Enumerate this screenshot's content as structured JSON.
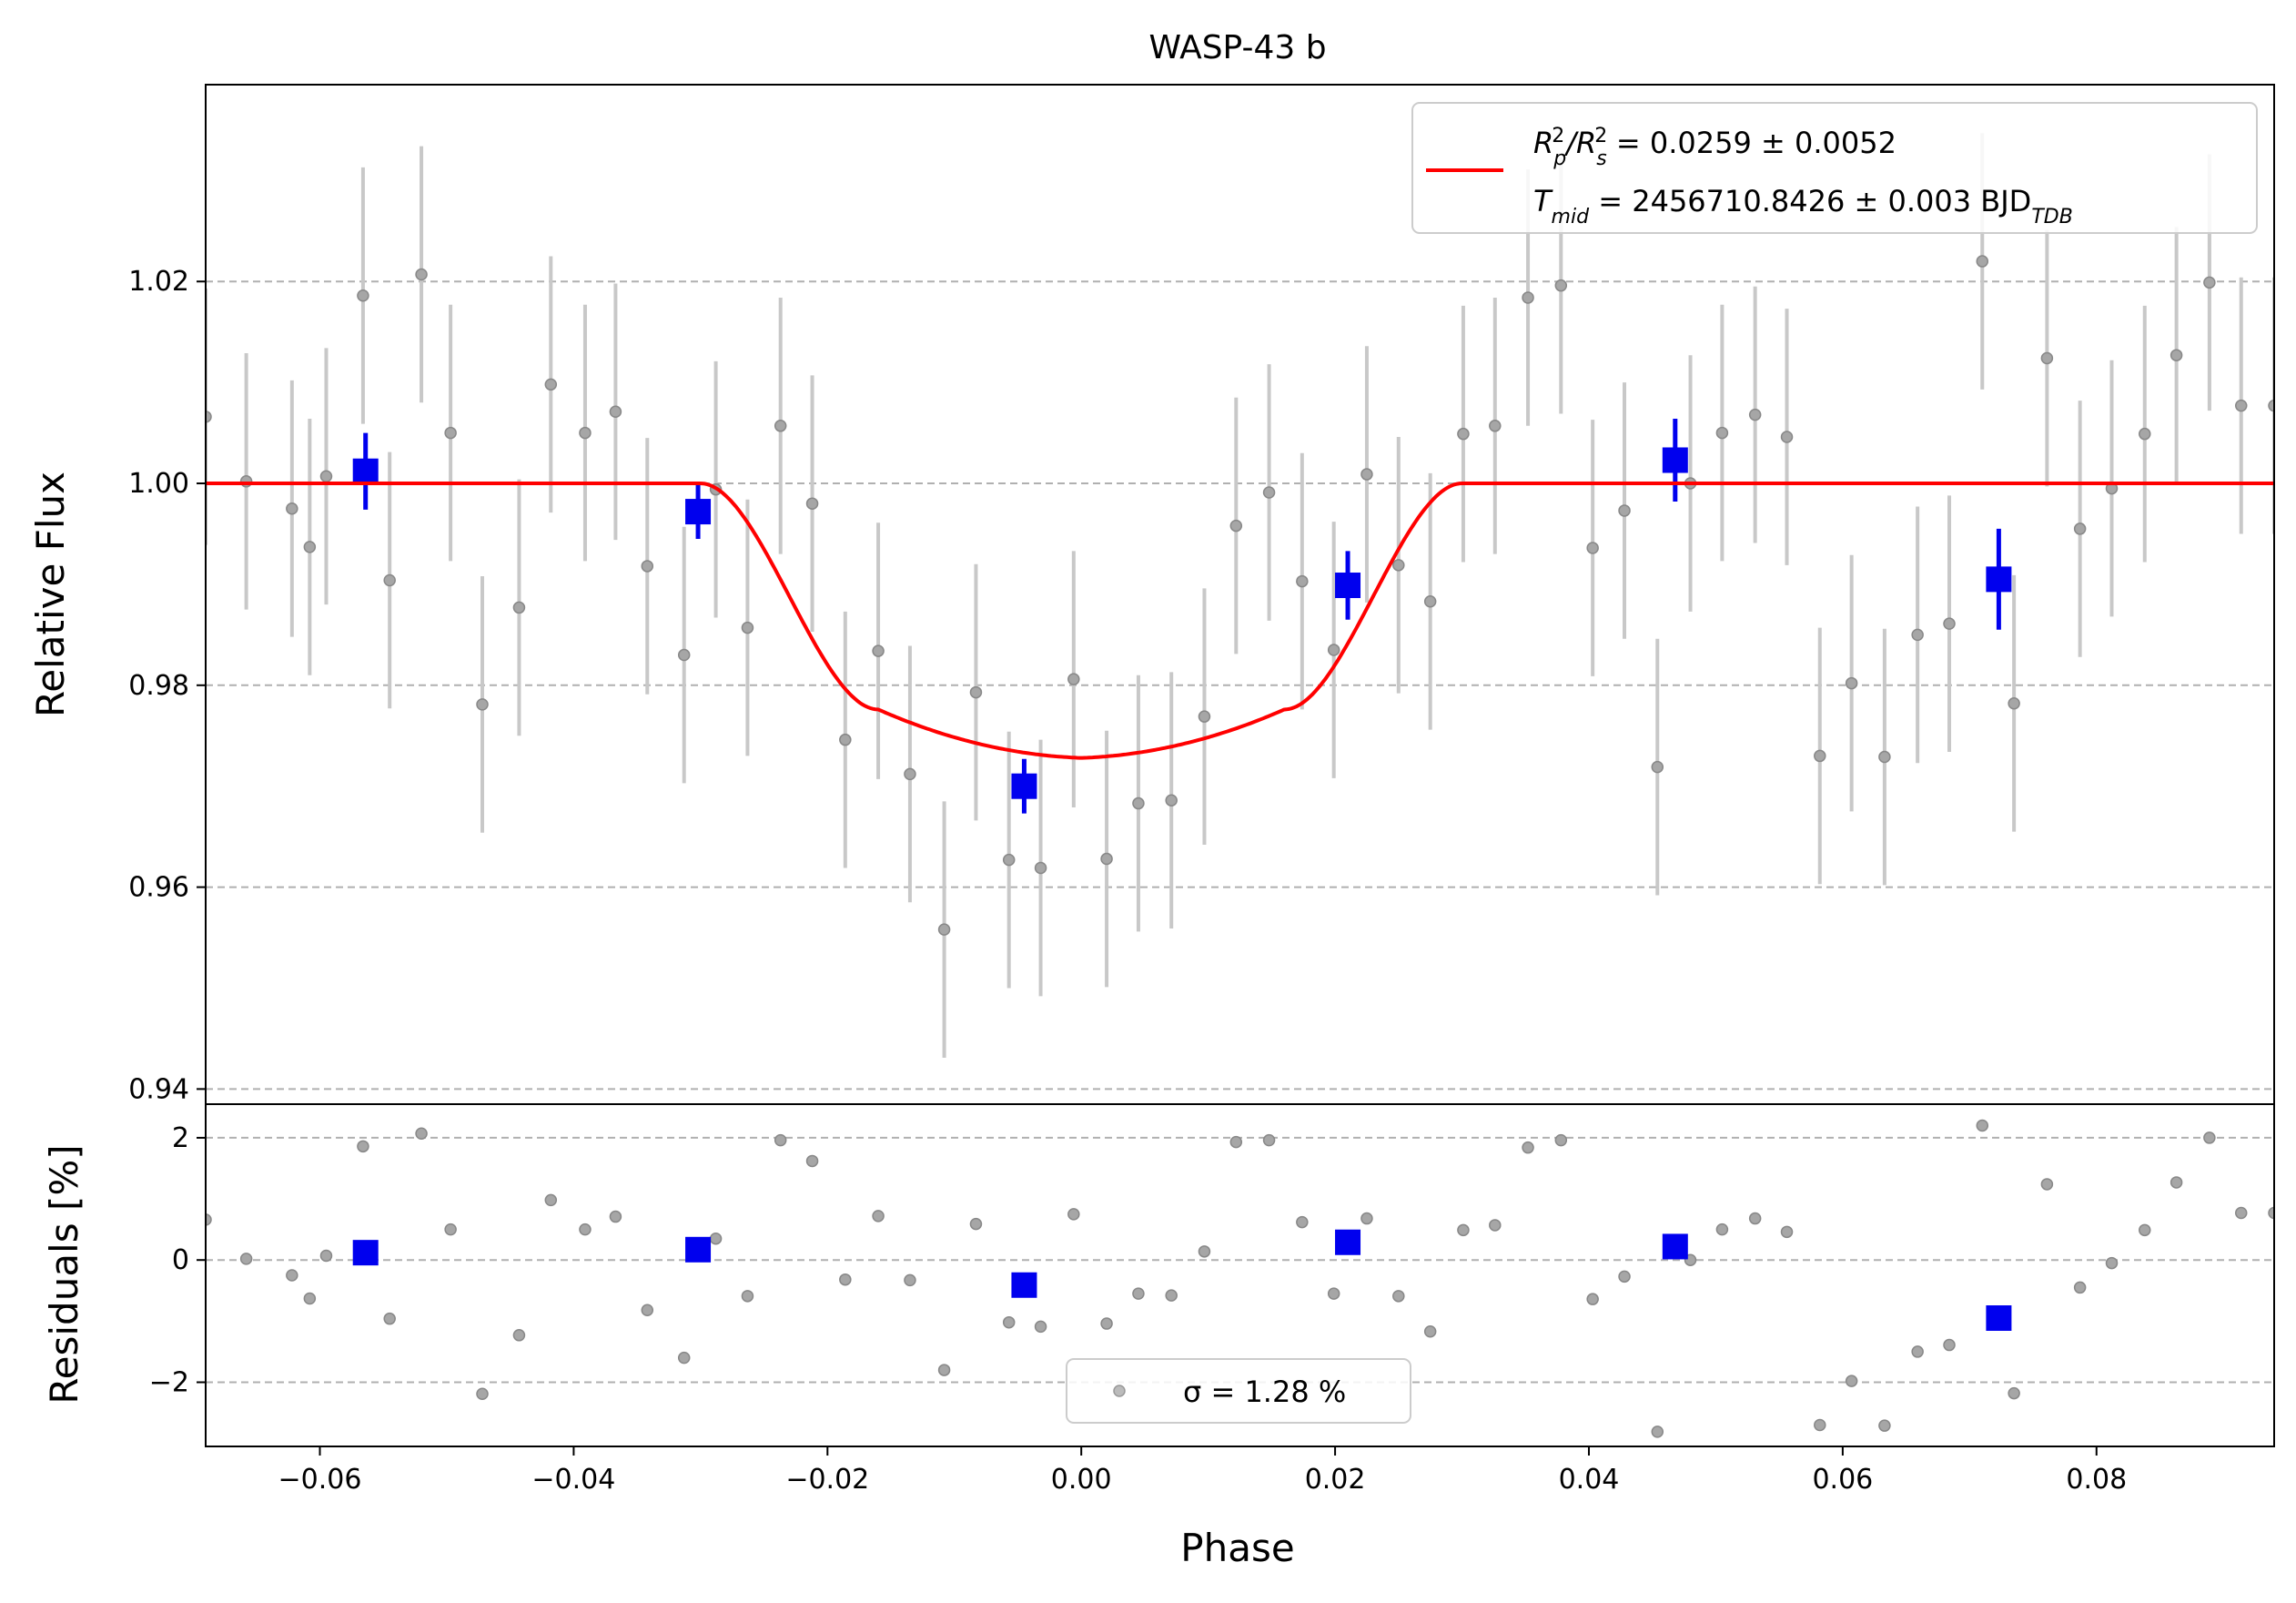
{
  "chart_data": [
    {
      "type": "scatter",
      "panel": "transit",
      "title": "WASP-43 b",
      "xlabel": "",
      "ylabel": "Relative Flux",
      "xlim": [
        -0.069,
        0.094
      ],
      "ylim": [
        0.9385,
        1.0395
      ],
      "yticks": [
        0.94,
        0.96,
        0.98,
        1.0,
        1.02
      ],
      "ytick_labels": [
        "0.94",
        "0.96",
        "0.98",
        "1.00",
        "1.02"
      ],
      "grid": "horizontal-dashed",
      "legend": {
        "placement": "top-right",
        "line1": {
          "base": "R",
          "sub1": "p",
          "sup1": "2",
          "slash": "/R",
          "sub2": "s",
          "sup2": "2",
          "rest": " = 0.0259 ± 0.0052"
        },
        "line2": {
          "base": "T",
          "sub": "mid",
          "rest": " = 2456710.8426 ± 0.003 BJD",
          "sub_tdb": "TDB"
        }
      },
      "colors": {
        "data": "#808080",
        "errorbar": "#c8c8c8",
        "binned": "#0000ee",
        "model": "#ff0000",
        "grid": "#b0b0b0"
      },
      "model": {
        "depth": 0.0272,
        "t1": -0.03,
        "t2": -0.016,
        "t3": 0.016,
        "t4": 0.03,
        "flat_bottom_min": 0.9728,
        "contact_level": 0.9776
      },
      "series": [
        {
          "name": "data",
          "x": [
            -0.069,
            -0.0658,
            -0.0622,
            -0.0608,
            -0.0595,
            -0.0566,
            -0.0545,
            -0.052,
            -0.0497,
            -0.0472,
            -0.0443,
            -0.0418,
            -0.0391,
            -0.0367,
            -0.0342,
            -0.0313,
            -0.0288,
            -0.0263,
            -0.0237,
            -0.0212,
            -0.0186,
            -0.016,
            -0.0135,
            -0.0108,
            -0.0083,
            -0.0057,
            -0.0032,
            -0.0006,
            0.002,
            0.0045,
            0.0071,
            0.0097,
            0.0122,
            0.0148,
            0.0174,
            0.0199,
            0.0225,
            0.025,
            0.0275,
            0.0301,
            0.0326,
            0.0352,
            0.0378,
            0.0403,
            0.0428,
            0.0454,
            0.048,
            0.0505,
            0.0531,
            0.0556,
            0.0582,
            0.0607,
            0.0633,
            0.0659,
            0.0684,
            0.071,
            0.0735,
            0.0761,
            0.0787,
            0.0812,
            0.0838,
            0.0863,
            0.0889,
            0.0914,
            0.094
          ],
          "y": [
            1.0066,
            1.0002,
            0.9975,
            0.9937,
            1.0007,
            1.0186,
            0.9904,
            1.0207,
            1.005,
            0.9781,
            0.9877,
            1.0098,
            1.005,
            1.0071,
            0.9918,
            0.983,
            0.9994,
            0.9857,
            1.0057,
            0.998,
            0.9746,
            0.9834,
            0.9712,
            0.9558,
            0.9793,
            0.9627,
            0.9619,
            0.9806,
            0.9628,
            0.9683,
            0.9686,
            0.9769,
            0.9958,
            0.9991,
            0.9903,
            0.9835,
            1.0009,
            0.9919,
            0.9883,
            1.0049,
            1.0057,
            1.0184,
            1.0196,
            0.9936,
            0.9973,
            0.9719,
            1.0,
            1.005,
            1.0068,
            1.0046,
            0.973,
            0.9802,
            0.9729,
            0.985,
            0.9861,
            1.022,
            0.9782,
            1.0124,
            0.9955,
            0.9995,
            1.0049,
            1.0127,
            1.0199,
            1.0077,
            1.0077
          ],
          "yerr": 0.0127
        },
        {
          "name": "binned",
          "x": [
            -0.0564,
            -0.0302,
            -0.0045,
            0.021,
            0.0468,
            0.0723
          ],
          "y": [
            1.0012,
            0.9972,
            0.97,
            0.9899,
            1.0023,
            0.9905
          ],
          "yerr": [
            0.0038,
            0.0027,
            0.0027,
            0.0034,
            0.0041,
            0.005
          ]
        }
      ]
    },
    {
      "type": "scatter",
      "panel": "residuals",
      "xlabel": "Phase",
      "ylabel": "Residuals [%]",
      "xlim": [
        -0.069,
        0.094
      ],
      "ylim": [
        -3.05,
        2.55
      ],
      "xticks": [
        -0.06,
        -0.04,
        -0.02,
        0.0,
        0.02,
        0.04,
        0.06,
        0.08
      ],
      "xtick_labels": [
        "−0.06",
        "−0.04",
        "−0.02",
        "0.00",
        "0.02",
        "0.04",
        "0.06",
        "0.08"
      ],
      "yticks": [
        -2,
        0,
        2
      ],
      "ytick_labels": [
        "−2",
        "0",
        "2"
      ],
      "grid": "horizontal-dashed",
      "legend": {
        "placement": "bottom-center",
        "text": "σ = 1.28 %"
      },
      "series": [
        {
          "name": "data",
          "x": [
            -0.069,
            -0.0658,
            -0.0622,
            -0.0608,
            -0.0595,
            -0.0566,
            -0.0545,
            -0.052,
            -0.0497,
            -0.0472,
            -0.0443,
            -0.0418,
            -0.0391,
            -0.0367,
            -0.0342,
            -0.0313,
            -0.0288,
            -0.0263,
            -0.0237,
            -0.0212,
            -0.0186,
            -0.016,
            -0.0135,
            -0.0108,
            -0.0083,
            -0.0057,
            -0.0032,
            -0.0006,
            0.002,
            0.0045,
            0.0071,
            0.0097,
            0.0122,
            0.0148,
            0.0174,
            0.0199,
            0.0225,
            0.025,
            0.0275,
            0.0301,
            0.0326,
            0.0352,
            0.0378,
            0.0403,
            0.0428,
            0.0454,
            0.048,
            0.0505,
            0.0531,
            0.0556,
            0.0582,
            0.0607,
            0.0633,
            0.0659,
            0.0684,
            0.071,
            0.0735,
            0.0761,
            0.0787,
            0.0812,
            0.0838,
            0.0863,
            0.0889,
            0.0914,
            0.094
          ],
          "y": [
            0.66,
            0.02,
            -0.25,
            -0.63,
            0.07,
            1.86,
            -0.96,
            2.07,
            0.5,
            -2.19,
            -1.23,
            0.98,
            0.5,
            0.71,
            -0.82,
            -1.6,
            0.35,
            -0.59,
            1.96,
            1.62,
            -0.32,
            0.72,
            -0.33,
            -1.8,
            0.59,
            -1.02,
            -1.09,
            0.75,
            -1.04,
            -0.55,
            -0.58,
            0.14,
            1.93,
            1.96,
            0.62,
            -0.55,
            0.68,
            -0.59,
            -1.17,
            0.49,
            0.57,
            1.84,
            1.96,
            -0.64,
            -0.27,
            -2.81,
            0.0,
            0.5,
            0.68,
            0.46,
            -2.7,
            -1.98,
            -2.71,
            -1.5,
            -1.39,
            2.2,
            -2.18,
            1.24,
            -0.45,
            -0.05,
            0.49,
            1.27,
            2.0,
            0.77,
            0.77
          ]
        },
        {
          "name": "binned",
          "x": [
            -0.0564,
            -0.0302,
            -0.0045,
            0.021,
            0.0468,
            0.0723
          ],
          "y": [
            0.12,
            0.17,
            -0.41,
            0.29,
            0.22,
            -0.95
          ]
        }
      ]
    }
  ]
}
